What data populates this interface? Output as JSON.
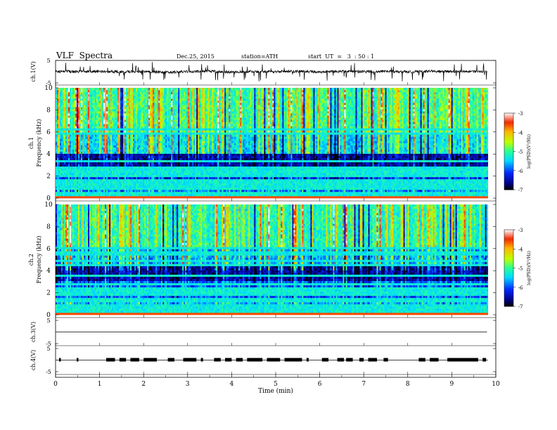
{
  "header": {
    "title": "VLF  Spectra",
    "date": "Dec.25, 2015",
    "station": "station=ATH",
    "start_ut": "start  UT  =   3  : 50 : 1"
  },
  "chart_data": [
    {
      "type": "line",
      "panel": "ch1-waveform",
      "ylabel": "ch.1(V)",
      "ylim": [
        -5,
        5
      ],
      "yticks": [
        "5",
        "-5"
      ],
      "x": [
        0,
        0.5,
        1,
        1.5,
        2,
        2.5,
        3,
        3.5,
        4,
        4.5,
        5,
        5.5,
        6,
        6.5,
        7,
        7.5,
        8,
        8.5,
        9,
        9.5,
        9.8
      ],
      "values": [
        0.1,
        0.0,
        0.2,
        -0.1,
        0.1,
        -0.3,
        0.0,
        0.2,
        -0.2,
        0.1,
        0.0,
        0.2,
        -0.1,
        0.1,
        0.0,
        0.1,
        -0.1,
        0.2,
        0.0,
        0.1,
        0.0
      ]
    },
    {
      "type": "heatmap",
      "panel": "ch1-spectrogram",
      "ylabel": "ch.1\nFrequency  (kHz)",
      "ylim": [
        0,
        10
      ],
      "yticks": [
        "0",
        "2",
        "4",
        "6",
        "8",
        "10"
      ],
      "colorbar": {
        "label": "log(PSD)(V²/Hz)",
        "range": [
          -7,
          -3
        ],
        "ticks": [
          "-3",
          "-4",
          "-5",
          "-6",
          "-7"
        ]
      },
      "typical_log_psd_by_band": [
        {
          "freq_khz": [
            0,
            1
          ],
          "log_psd": -5.8
        },
        {
          "freq_khz": [
            1,
            2
          ],
          "log_psd": -6.2
        },
        {
          "freq_khz": [
            2,
            4
          ],
          "log_psd": -6.6
        },
        {
          "freq_khz": [
            4,
            6
          ],
          "log_psd": -5.4
        },
        {
          "freq_khz": [
            6,
            10
          ],
          "log_psd": -5.0
        }
      ]
    },
    {
      "type": "heatmap",
      "panel": "ch2-spectrogram",
      "ylabel": "ch.2\nFrequency  (kHz)",
      "ylim": [
        0,
        10
      ],
      "yticks": [
        "0",
        "2",
        "4",
        "6",
        "8",
        "10"
      ],
      "colorbar": {
        "label": "log(PSD)(V²/Hz)",
        "range": [
          -7,
          -3
        ],
        "ticks": [
          "-3",
          "-4",
          "-5",
          "-6",
          "-7"
        ]
      },
      "typical_log_psd_by_band": [
        {
          "freq_khz": [
            0,
            1.5
          ],
          "log_psd": -5.6
        },
        {
          "freq_khz": [
            1.5,
            3
          ],
          "log_psd": -6.0
        },
        {
          "freq_khz": [
            3,
            4.5
          ],
          "log_psd": -6.6
        },
        {
          "freq_khz": [
            4.5,
            6
          ],
          "log_psd": -5.6
        },
        {
          "freq_khz": [
            6,
            10
          ],
          "log_psd": -5.1
        }
      ]
    },
    {
      "type": "line",
      "panel": "ch3-waveform",
      "ylabel": "ch.3(V)",
      "ylim": [
        -5,
        5
      ],
      "yticks": [
        "5",
        "-5"
      ],
      "x": [
        0,
        9.8
      ],
      "values": [
        0,
        0
      ]
    },
    {
      "type": "line",
      "panel": "ch4-waveform",
      "ylabel": "ch.4(V)",
      "ylim": [
        -5,
        5
      ],
      "yticks": [
        "5",
        "-5"
      ],
      "pulse_intervals_min": [
        [
          0.08,
          0.12
        ],
        [
          0.48,
          0.52
        ],
        [
          1.15,
          1.35
        ],
        [
          1.45,
          1.6
        ],
        [
          1.7,
          1.9
        ],
        [
          2.0,
          2.3
        ],
        [
          2.55,
          2.7
        ],
        [
          2.9,
          3.2
        ],
        [
          3.3,
          3.35
        ],
        [
          3.6,
          3.75
        ],
        [
          3.85,
          4.0
        ],
        [
          4.1,
          4.25
        ],
        [
          4.35,
          4.7
        ],
        [
          4.8,
          5.1
        ],
        [
          5.2,
          5.6
        ],
        [
          5.7,
          5.75
        ],
        [
          6.05,
          6.2
        ],
        [
          6.4,
          6.55
        ],
        [
          6.6,
          6.75
        ],
        [
          6.9,
          7.0
        ],
        [
          7.1,
          7.3
        ],
        [
          7.45,
          7.55
        ],
        [
          8.25,
          8.4
        ],
        [
          8.5,
          8.7
        ],
        [
          8.9,
          9.6
        ],
        [
          9.7,
          9.78
        ]
      ]
    }
  ],
  "x_axis": {
    "xlabel": "Time  (min)",
    "xlim": [
      0,
      10
    ],
    "ticks": [
      "0",
      "1",
      "2",
      "3",
      "4",
      "5",
      "6",
      "7",
      "8",
      "9",
      "10"
    ]
  }
}
